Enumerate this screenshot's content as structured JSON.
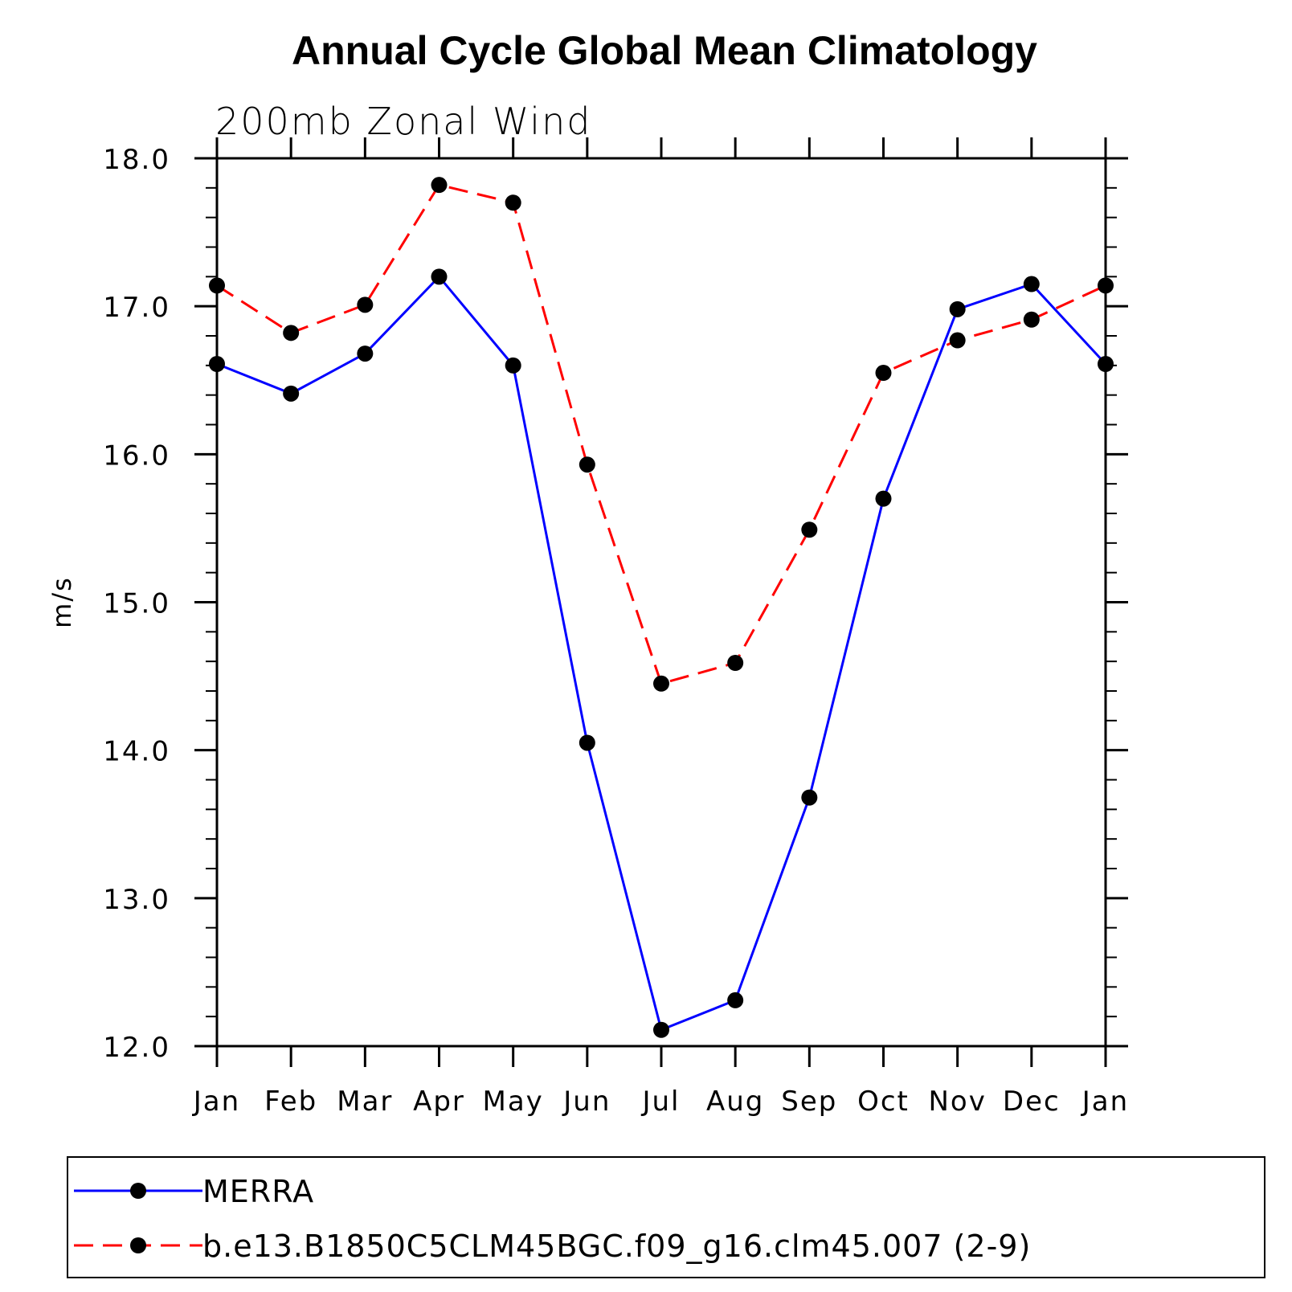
{
  "chart_data": {
    "type": "line",
    "title": "Annual Cycle Global Mean Climatology",
    "subtitle": "200mb Zonal Wind",
    "xlabel": "",
    "ylabel": "m/s",
    "categories": [
      "Jan",
      "Feb",
      "Mar",
      "Apr",
      "May",
      "Jun",
      "Jul",
      "Aug",
      "Sep",
      "Oct",
      "Nov",
      "Dec",
      "Jan"
    ],
    "ylim": [
      12.0,
      18.0
    ],
    "yticks": [
      "12.0",
      "13.0",
      "14.0",
      "15.0",
      "16.0",
      "17.0",
      "18.0"
    ],
    "grid": false,
    "legend_position": "bottom",
    "series": [
      {
        "name": "MERRA",
        "color": "#0000ff",
        "line_style": "solid",
        "marker": "filled-circle",
        "values": [
          16.61,
          16.41,
          16.68,
          17.2,
          16.6,
          14.05,
          12.11,
          12.31,
          13.68,
          15.7,
          16.98,
          17.15,
          16.61
        ]
      },
      {
        "name": "b.e13.B1850C5CLM45BGC.f09_g16.clm45.007 (2-9)",
        "color": "#ff0000",
        "line_style": "dashed",
        "marker": "filled-circle",
        "values": [
          17.14,
          16.82,
          17.01,
          17.82,
          17.7,
          15.93,
          14.45,
          14.59,
          15.49,
          16.55,
          16.77,
          16.91,
          17.14
        ]
      }
    ]
  }
}
